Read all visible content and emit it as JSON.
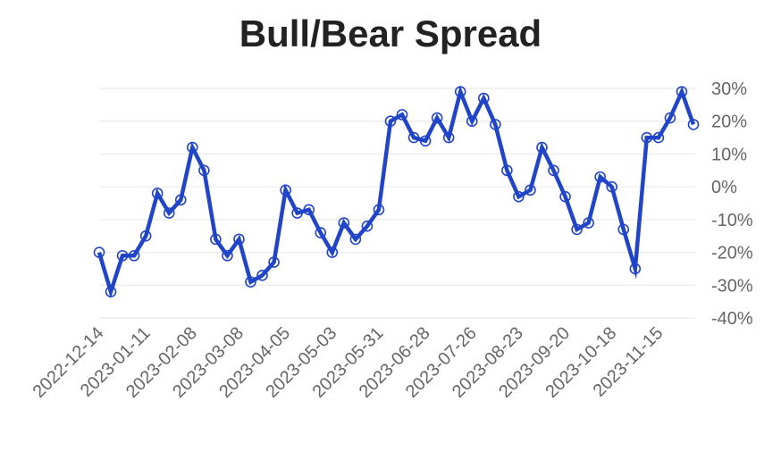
{
  "chart_data": {
    "type": "line",
    "title": "Bull/Bear Spread",
    "xlabel": "",
    "ylabel": "",
    "x_tick_labels": [
      "2022-12-14",
      "2023-01-11",
      "2023-02-08",
      "2023-03-08",
      "2023-04-05",
      "2023-05-03",
      "2023-05-31",
      "2023-06-28",
      "2023-07-26",
      "2023-08-23",
      "2023-09-20",
      "2023-10-18",
      "2023-11-15"
    ],
    "y_tick_labels": [
      "30%",
      "20%",
      "10%",
      "0%",
      "-10%",
      "-20%",
      "-30%",
      "-40%"
    ],
    "ylim": [
      -40,
      30
    ],
    "y_ticks": [
      30,
      20,
      10,
      0,
      -10,
      -20,
      -30,
      -40
    ],
    "y_axis_position": "right",
    "grid": true,
    "legend": "none",
    "series": [
      {
        "color": "#2145c9",
        "x": [
          "2022-12-14",
          "2022-12-21",
          "2022-12-28",
          "2023-01-04",
          "2023-01-11",
          "2023-01-18",
          "2023-01-25",
          "2023-02-01",
          "2023-02-08",
          "2023-02-15",
          "2023-02-22",
          "2023-03-01",
          "2023-03-08",
          "2023-03-15",
          "2023-03-22",
          "2023-03-29",
          "2023-04-05",
          "2023-04-12",
          "2023-04-19",
          "2023-04-26",
          "2023-05-03",
          "2023-05-10",
          "2023-05-17",
          "2023-05-24",
          "2023-05-31",
          "2023-06-07",
          "2023-06-14",
          "2023-06-21",
          "2023-06-28",
          "2023-07-05",
          "2023-07-12",
          "2023-07-19",
          "2023-07-26",
          "2023-08-02",
          "2023-08-09",
          "2023-08-16",
          "2023-08-23",
          "2023-08-30",
          "2023-09-06",
          "2023-09-13",
          "2023-09-20",
          "2023-09-27",
          "2023-10-04",
          "2023-10-11",
          "2023-10-18",
          "2023-10-25",
          "2023-11-01",
          "2023-11-08",
          "2023-11-15",
          "2023-11-22",
          "2023-11-29",
          "2023-12-06"
        ],
        "values": [
          -20,
          -32,
          -21,
          -21,
          -15,
          -2,
          -8,
          -4,
          12,
          5,
          -16,
          -21,
          -16,
          -29,
          -27,
          -23,
          -1,
          -8,
          -7,
          -14,
          -20,
          -11,
          -16,
          -12,
          -7,
          20,
          22,
          15,
          14,
          21,
          15,
          29,
          20,
          27,
          19,
          5,
          -3,
          -1,
          12,
          5,
          -3,
          -13,
          -11,
          3,
          0,
          -13,
          -25,
          15,
          15,
          21,
          29,
          19
        ]
      }
    ]
  }
}
